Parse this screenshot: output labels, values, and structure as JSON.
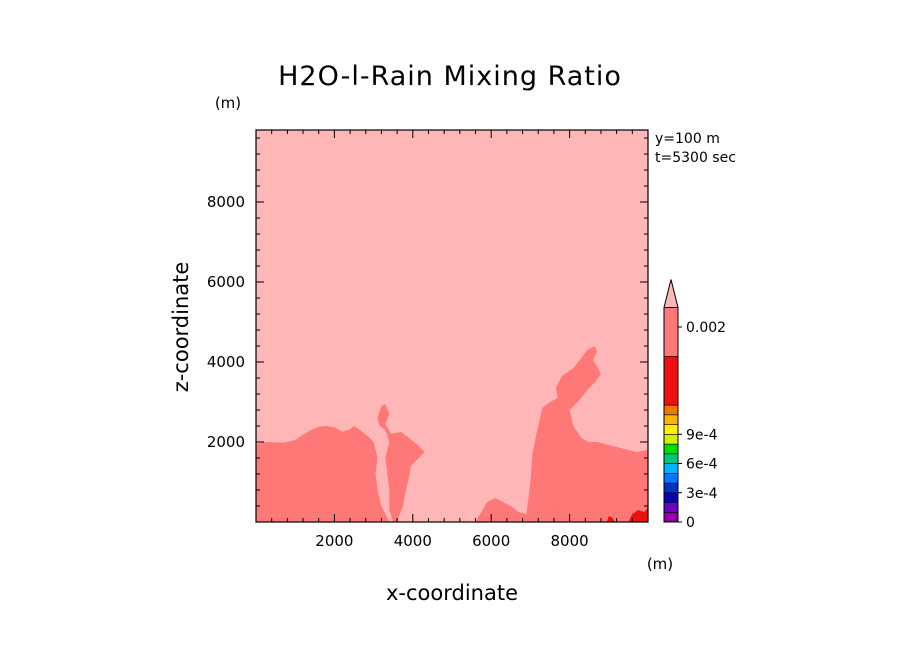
{
  "chart_data": {
    "type": "contour",
    "title": "H2O-l-Rain Mixing Ratio",
    "xlabel": "x-coordinate",
    "ylabel": "z-coordinate",
    "x_unit": "(m)",
    "y_unit": "(m)",
    "xlim": [
      0,
      10000
    ],
    "ylim": [
      0,
      9800
    ],
    "xticks": [
      2000,
      4000,
      6000,
      8000
    ],
    "yticks": [
      2000,
      4000,
      6000,
      8000
    ],
    "annotations": [
      "y=100 m",
      "t=5300 sec"
    ],
    "background_color": "#ffb6b6",
    "regions": [
      {
        "name": "left-rain-region",
        "color": "#ff7878",
        "points": [
          [
            0,
            1950
          ],
          [
            250,
            2000
          ],
          [
            700,
            1980
          ],
          [
            1000,
            2050
          ],
          [
            1200,
            2180
          ],
          [
            1400,
            2300
          ],
          [
            1600,
            2380
          ],
          [
            1800,
            2400
          ],
          [
            2000,
            2370
          ],
          [
            2200,
            2260
          ],
          [
            2400,
            2320
          ],
          [
            2500,
            2400
          ],
          [
            2650,
            2300
          ],
          [
            2850,
            2150
          ],
          [
            3000,
            2000
          ],
          [
            3100,
            1600
          ],
          [
            3050,
            1200
          ],
          [
            3100,
            800
          ],
          [
            3200,
            400
          ],
          [
            3300,
            200
          ],
          [
            3400,
            0
          ],
          [
            0,
            0
          ]
        ]
      },
      {
        "name": "center-rain-region",
        "color": "#ff7878",
        "points": [
          [
            3100,
            2600
          ],
          [
            3200,
            2900
          ],
          [
            3300,
            2950
          ],
          [
            3400,
            2700
          ],
          [
            3300,
            2450
          ],
          [
            3450,
            2200
          ],
          [
            3700,
            2250
          ],
          [
            3900,
            2100
          ],
          [
            4100,
            1950
          ],
          [
            4300,
            1750
          ],
          [
            4100,
            1550
          ],
          [
            3950,
            1400
          ],
          [
            3900,
            1100
          ],
          [
            3800,
            700
          ],
          [
            3750,
            400
          ],
          [
            3650,
            150
          ],
          [
            3600,
            0
          ],
          [
            3500,
            0
          ],
          [
            3400,
            300
          ],
          [
            3400,
            800
          ],
          [
            3350,
            1200
          ],
          [
            3300,
            1600
          ],
          [
            3400,
            2000
          ],
          [
            3300,
            2300
          ],
          [
            3150,
            2400
          ]
        ]
      },
      {
        "name": "right-rain-region",
        "color": "#ff7878",
        "points": [
          [
            5600,
            0
          ],
          [
            5750,
            250
          ],
          [
            5900,
            500
          ],
          [
            6100,
            600
          ],
          [
            6300,
            500
          ],
          [
            6500,
            400
          ],
          [
            6700,
            250
          ],
          [
            6900,
            200
          ],
          [
            7000,
            1000
          ],
          [
            7050,
            1700
          ],
          [
            7150,
            2200
          ],
          [
            7250,
            2600
          ],
          [
            7300,
            2850
          ],
          [
            7500,
            3000
          ],
          [
            7700,
            3100
          ],
          [
            7650,
            3350
          ],
          [
            7800,
            3650
          ],
          [
            8100,
            3850
          ],
          [
            8300,
            4100
          ],
          [
            8450,
            4300
          ],
          [
            8650,
            4400
          ],
          [
            8700,
            4250
          ],
          [
            8600,
            4050
          ],
          [
            8700,
            3900
          ],
          [
            8800,
            3700
          ],
          [
            8650,
            3500
          ],
          [
            8450,
            3300
          ],
          [
            8250,
            3050
          ],
          [
            8000,
            2800
          ],
          [
            8100,
            2400
          ],
          [
            8300,
            2100
          ],
          [
            8500,
            2000
          ],
          [
            8700,
            2000
          ],
          [
            8900,
            1950
          ],
          [
            9100,
            1900
          ],
          [
            9300,
            1850
          ],
          [
            9500,
            1800
          ],
          [
            9700,
            1750
          ],
          [
            10000,
            1800
          ],
          [
            10000,
            0
          ]
        ]
      },
      {
        "name": "corner-red-region",
        "color": "#ee1010",
        "points": [
          [
            9500,
            0
          ],
          [
            9600,
            200
          ],
          [
            9750,
            300
          ],
          [
            9900,
            250
          ],
          [
            10000,
            350
          ],
          [
            10000,
            0
          ]
        ]
      },
      {
        "name": "small-red-spot",
        "color": "#ee1010",
        "points": [
          [
            8950,
            0
          ],
          [
            9000,
            150
          ],
          [
            9100,
            100
          ],
          [
            9150,
            0
          ]
        ]
      }
    ],
    "colorbar": {
      "segments": [
        {
          "color": "#9400a8"
        },
        {
          "color": "#6a00c0"
        },
        {
          "color": "#0a00b4"
        },
        {
          "color": "#0032c8"
        },
        {
          "color": "#0078ff"
        },
        {
          "color": "#00b4ff"
        },
        {
          "color": "#00c878"
        },
        {
          "color": "#00e000"
        },
        {
          "color": "#d2f000"
        },
        {
          "color": "#fff000"
        },
        {
          "color": "#ffb400"
        },
        {
          "color": "#f07800"
        },
        {
          "color": "#ee1010",
          "span": 5
        },
        {
          "color": "#ff7878",
          "span": 5
        }
      ],
      "extend_color": "#ffb6b6",
      "labels": [
        {
          "text": "0",
          "at": 0
        },
        {
          "text": "3e-4",
          "at": 3
        },
        {
          "text": "6e-4",
          "at": 6
        },
        {
          "text": "9e-4",
          "at": 9
        },
        {
          "text": "0.002",
          "at": 20
        }
      ]
    }
  }
}
